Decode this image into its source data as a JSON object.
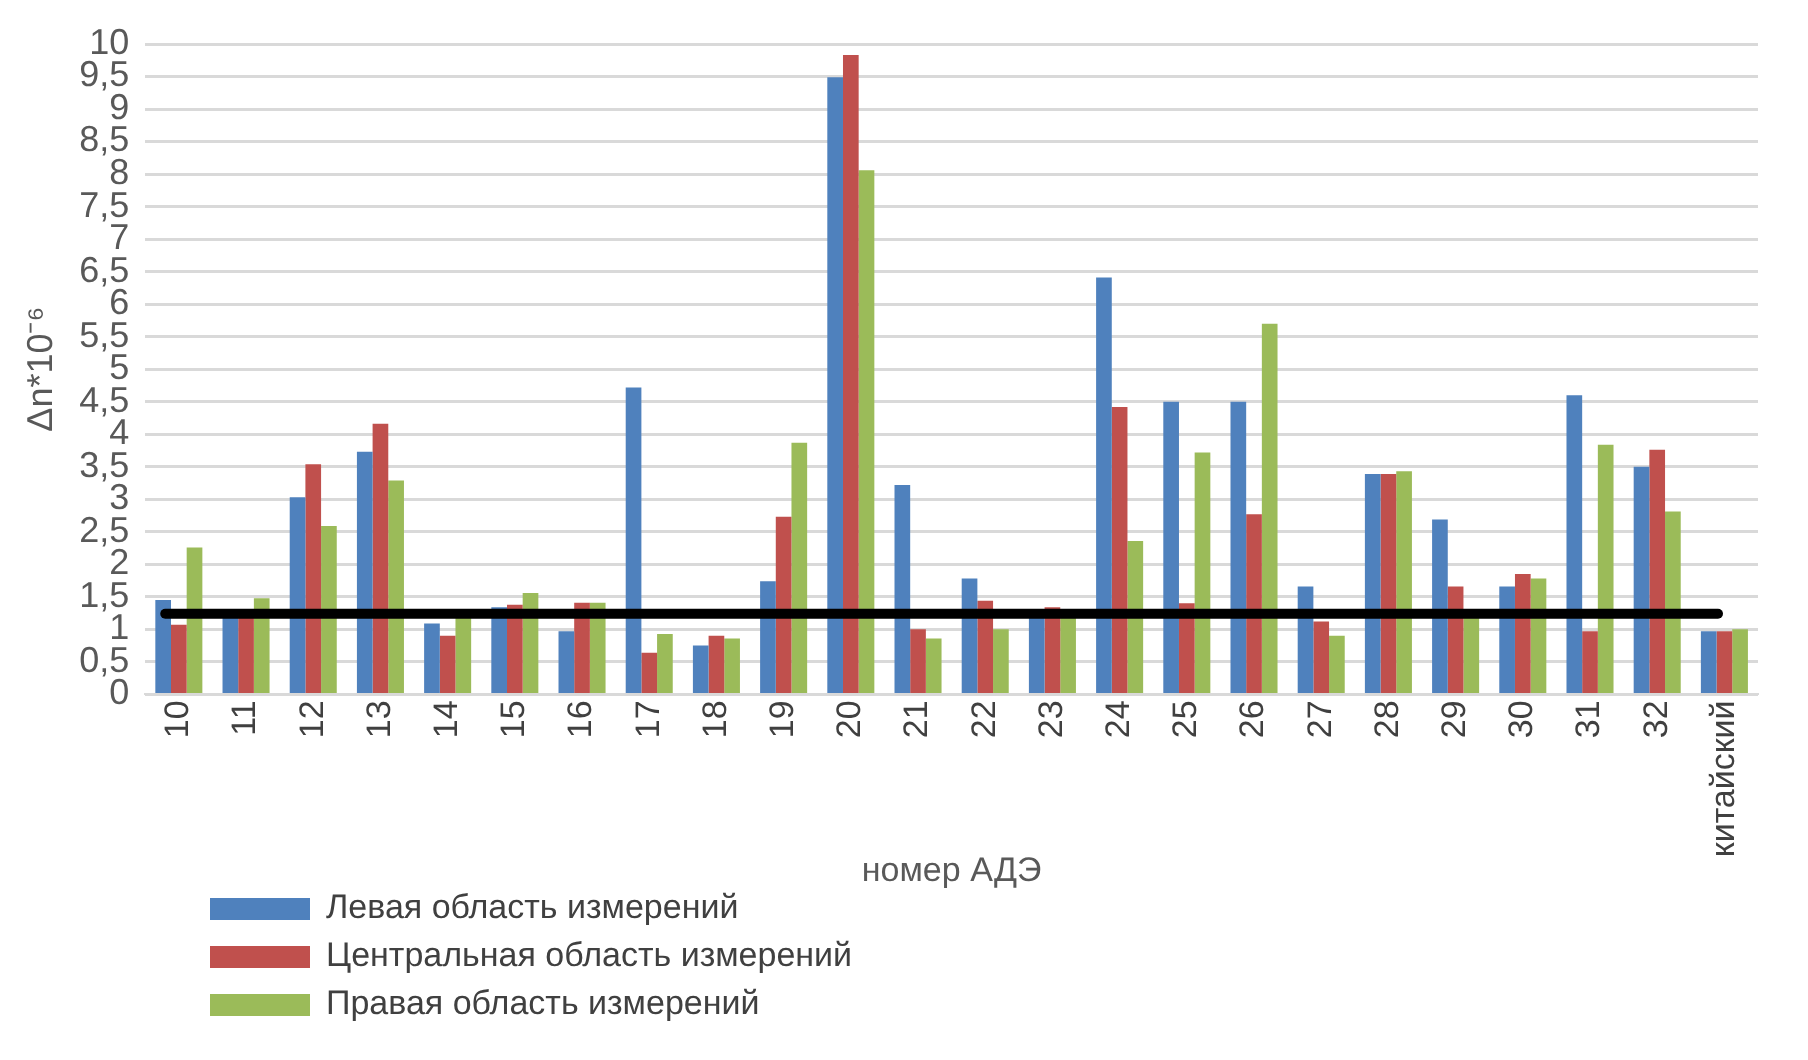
{
  "chart_data": {
    "type": "bar",
    "xlabel": "номер АДЭ",
    "ylabel": "Δn*10⁻⁶",
    "categories": [
      "10",
      "11",
      "12",
      "13",
      "14",
      "15",
      "16",
      "17",
      "18",
      "19",
      "20",
      "21",
      "22",
      "23",
      "24",
      "25",
      "26",
      "27",
      "28",
      "29",
      "30",
      "31",
      "32",
      "китайский"
    ],
    "series": [
      {
        "name": "Левая область измерений",
        "color": "#4f81bd",
        "values": [
          1.45,
          1.2,
          3.03,
          3.73,
          1.09,
          1.34,
          0.97,
          4.72,
          0.75,
          1.74,
          9.49,
          3.22,
          1.78,
          1.2,
          6.41,
          4.5,
          4.5,
          1.66,
          3.39,
          2.69,
          1.66,
          4.6,
          3.5,
          0.97
        ]
      },
      {
        "name": "Центральная область измерений",
        "color": "#c0504d",
        "values": [
          1.07,
          1.2,
          3.54,
          4.16,
          0.9,
          1.38,
          1.41,
          0.64,
          0.9,
          2.73,
          9.83,
          1.0,
          1.44,
          1.34,
          4.42,
          1.4,
          2.77,
          1.12,
          3.39,
          1.66,
          1.85,
          0.97,
          3.76,
          0.97
        ]
      },
      {
        "name": "Правая область измерений",
        "color": "#9bbb59",
        "values": [
          2.26,
          1.48,
          2.59,
          3.29,
          1.2,
          1.56,
          1.41,
          0.93,
          0.86,
          3.87,
          8.06,
          0.86,
          1.0,
          1.2,
          2.36,
          3.72,
          5.7,
          0.9,
          3.43,
          1.2,
          1.78,
          3.84,
          2.81,
          1.0
        ]
      }
    ],
    "ylim": [
      0,
      10
    ],
    "yticks": [
      0,
      {
        "value": 0.5,
        "label": "0,5"
      },
      1,
      {
        "value": 1.5,
        "label": "1,5"
      },
      2,
      {
        "value": 2.5,
        "label": "2,5"
      },
      3,
      {
        "value": 3.5,
        "label": "3,5"
      },
      4,
      {
        "value": 4.5,
        "label": "4,5"
      },
      5,
      {
        "value": 5.5,
        "label": "5,5"
      },
      6,
      {
        "value": 6.5,
        "label": "6,5"
      },
      7,
      {
        "value": 7.5,
        "label": "7,5"
      },
      8,
      {
        "value": 8.5,
        "label": "8,5"
      },
      9,
      {
        "value": 9.5,
        "label": "9,5"
      },
      10
    ],
    "grid": "y",
    "legend": "bottom left",
    "ref_lines": [
      {
        "axis": "y",
        "value": 1.24,
        "color": "#000000"
      }
    ]
  }
}
